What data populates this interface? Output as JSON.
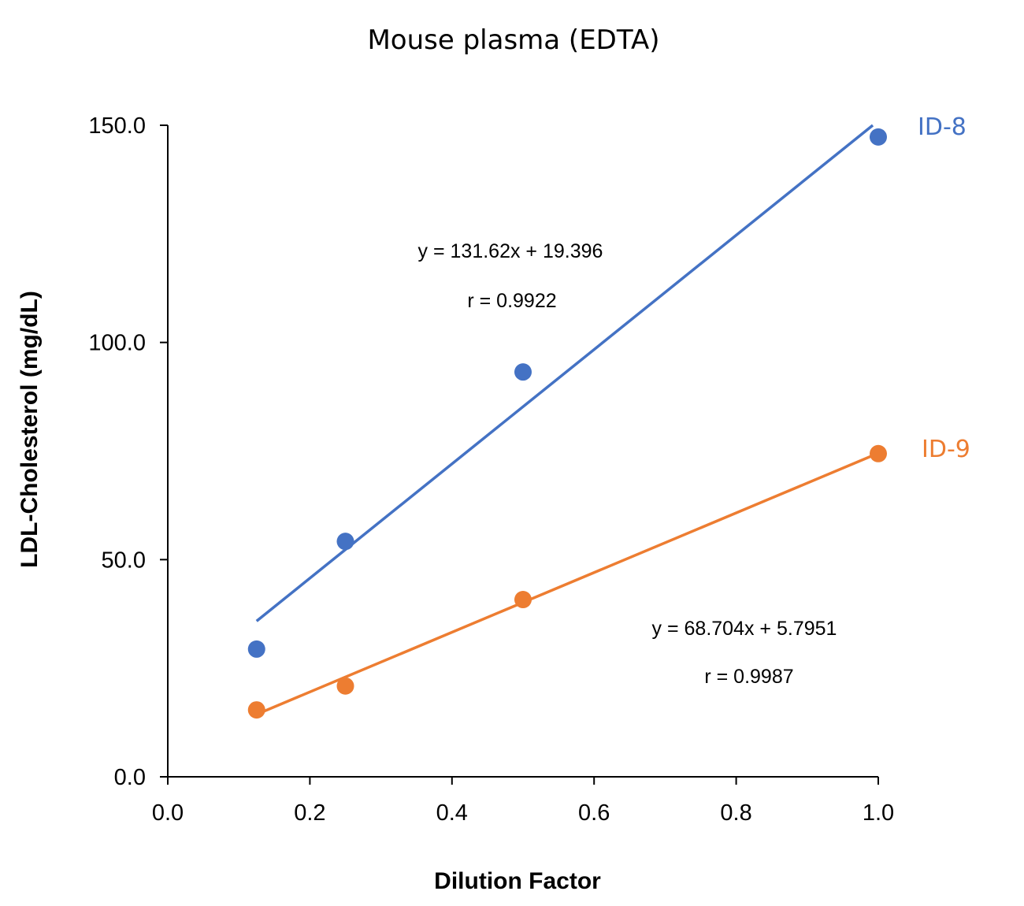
{
  "chart_data": {
    "type": "scatter",
    "title": "Mouse plasma (EDTA)",
    "xlabel": "Dilution Factor",
    "ylabel": "LDL-Cholesterol (mg/dL)",
    "xlim": [
      0,
      1.0
    ],
    "ylim": [
      0,
      150
    ],
    "xticks": [
      "0.0",
      "0.2",
      "0.4",
      "0.6",
      "0.8",
      "1.0"
    ],
    "yticks": [
      "0.0",
      "50.0",
      "100.0",
      "150.0"
    ],
    "grid": false,
    "series": [
      {
        "name": "ID-8",
        "color": "#4472C4",
        "x": [
          0.125,
          0.25,
          0.5,
          1.0
        ],
        "y": [
          29.4,
          54.2,
          93.2,
          147.3
        ],
        "trendline": {
          "slope": 131.62,
          "intercept": 19.396
        },
        "equation": "y = 131.62x + 19.396",
        "r": "r = 0.9922"
      },
      {
        "name": "ID-9",
        "color": "#ED7D31",
        "x": [
          0.125,
          0.25,
          0.5,
          1.0
        ],
        "y": [
          15.4,
          20.9,
          40.8,
          74.4
        ],
        "trendline": {
          "slope": 68.704,
          "intercept": 5.7951
        },
        "equation": "y = 68.704x + 5.7951",
        "r": "r = 0.9987"
      }
    ]
  }
}
